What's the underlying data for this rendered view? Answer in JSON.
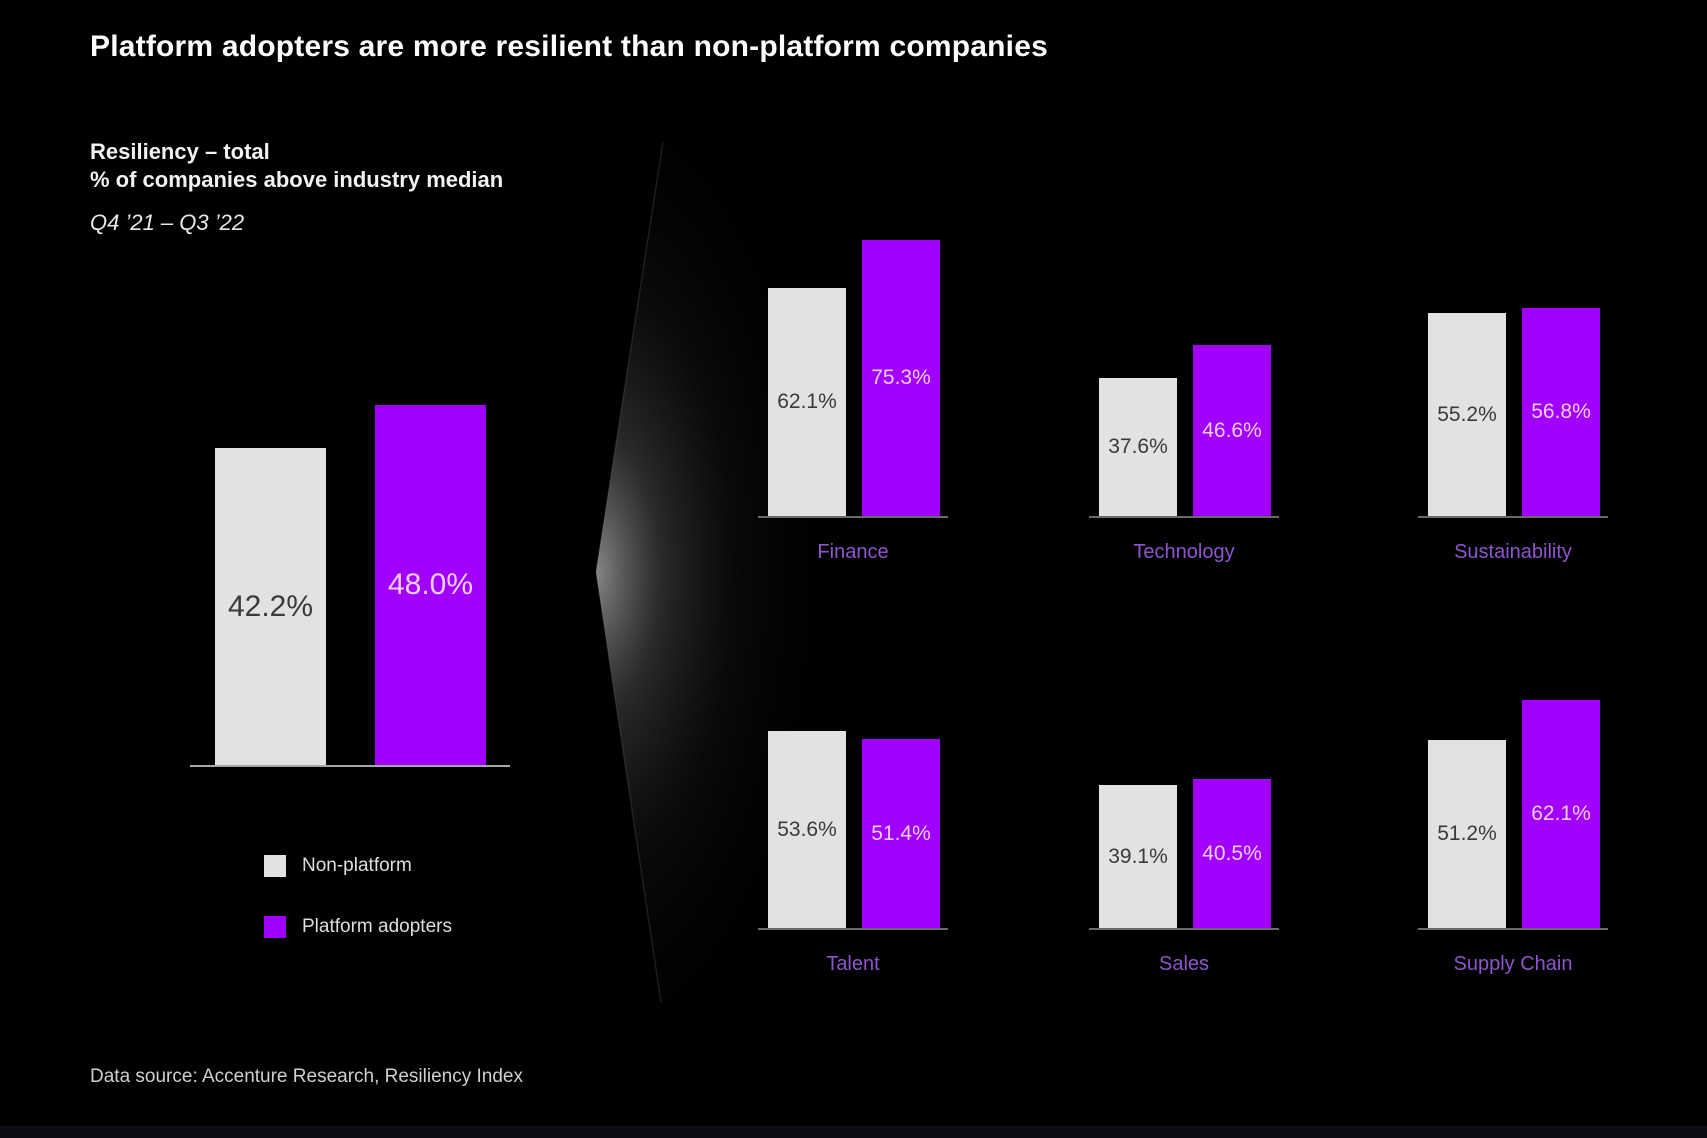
{
  "title": "Platform adopters are more resilient than non-platform companies",
  "chart_header": {
    "line1": "Resiliency – total",
    "line2": "% of companies above industry median",
    "period": "Q4 ’21 – Q3 ’22"
  },
  "legend": {
    "items": [
      {
        "label": "Non-platform",
        "swatch_color": "#E2E2E2"
      },
      {
        "label": "Platform adopters",
        "swatch_color": "#A100FF"
      }
    ]
  },
  "footer": {
    "source": "Data source: Accenture Research, Resiliency Index"
  },
  "colors": {
    "background": "#000000",
    "non_platform_bar": "#E2E2E2",
    "platform_bar": "#A100FF",
    "value_on_gray": "#3A3A3A",
    "value_on_purple": "#F4CFF8",
    "category_label": "#8E55CC",
    "main_axis_line": "#A6A6A6",
    "small_axis_line": "#6A6A6A"
  },
  "chart_data": {
    "type": "bar",
    "unit": "%",
    "title": "Resiliency – total",
    "subtitle": "% of companies above industry median",
    "period": "Q4 ’21 – Q3 ’22",
    "grid": false,
    "legend_position": "bottom-left",
    "series_names": [
      "Non-platform",
      "Platform adopters"
    ],
    "total": {
      "category": "Total",
      "series": [
        {
          "name": "Non-platform",
          "values": [
            42.2
          ]
        },
        {
          "name": "Platform adopters",
          "values": [
            48.0
          ]
        }
      ],
      "ylim": [
        0,
        50
      ]
    },
    "breakdown": {
      "categories": [
        "Finance",
        "Technology",
        "Sustainability",
        "Talent",
        "Sales",
        "Supply Chain"
      ],
      "series": [
        {
          "name": "Non-platform",
          "values": [
            62.1,
            37.6,
            55.2,
            53.6,
            39.1,
            51.2
          ]
        },
        {
          "name": "Platform adopters",
          "values": [
            75.3,
            46.6,
            56.8,
            51.4,
            40.5,
            62.1
          ]
        }
      ],
      "ylim": [
        0,
        80
      ]
    }
  }
}
